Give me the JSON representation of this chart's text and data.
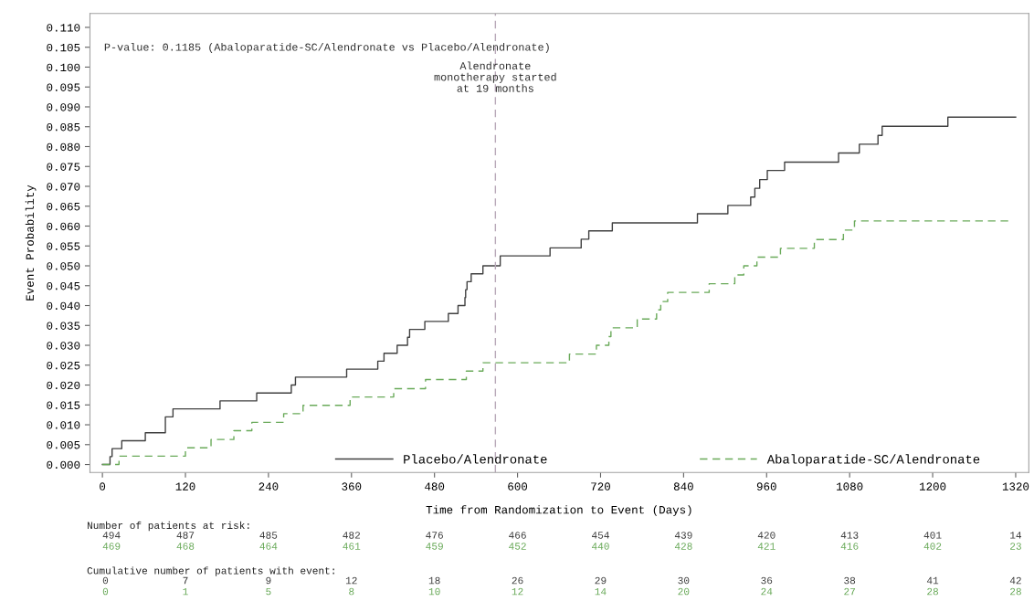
{
  "chart_data": {
    "type": "step",
    "xlabel": "Time from Randomization to Event (Days)",
    "ylabel": "Event Probability",
    "series": [
      {
        "name": "Placebo/Alendronate",
        "color": "#404040",
        "line_style": "solid",
        "x": [
          0,
          11,
          14,
          28,
          62,
          91,
          102,
          170,
          223,
          273,
          279,
          353,
          398,
          407,
          426,
          441,
          444,
          466,
          500,
          514,
          524,
          525,
          527,
          533,
          550,
          575,
          647,
          692,
          703,
          737,
          860,
          904,
          937,
          943,
          950,
          961,
          986,
          1064,
          1094,
          1121,
          1127,
          1222,
          1320
        ],
        "values": [
          0,
          0.002,
          0.004,
          0.006,
          0.008,
          0.012,
          0.014,
          0.016,
          0.018,
          0.02,
          0.022,
          0.024,
          0.026,
          0.028,
          0.03,
          0.032,
          0.034,
          0.036,
          0.038,
          0.04,
          0.042,
          0.044,
          0.046,
          0.048,
          0.05,
          0.0525,
          0.0545,
          0.0567,
          0.0588,
          0.0608,
          0.0631,
          0.0652,
          0.0673,
          0.0695,
          0.0717,
          0.074,
          0.0761,
          0.0784,
          0.0806,
          0.0828,
          0.0851,
          0.0874,
          0.0874
        ]
      },
      {
        "name": "Abaloparatide-SC/Alendronate",
        "color": "#6aaa5a",
        "line_style": "dashed",
        "x": [
          0,
          24,
          120,
          157,
          190,
          216,
          262,
          290,
          358,
          421,
          467,
          526,
          550,
          675,
          714,
          732,
          735,
          773,
          801,
          807,
          817,
          877,
          914,
          927,
          946,
          980,
          1029,
          1071,
          1087,
          1313
        ],
        "values": [
          0,
          0.0021,
          0.0042,
          0.0063,
          0.0085,
          0.0106,
          0.0128,
          0.0149,
          0.017,
          0.0191,
          0.0214,
          0.0235,
          0.0256,
          0.0278,
          0.03,
          0.0322,
          0.0344,
          0.0366,
          0.0389,
          0.041,
          0.0433,
          0.0455,
          0.0477,
          0.05,
          0.0522,
          0.0544,
          0.0566,
          0.059,
          0.0613,
          0.0613
        ]
      }
    ],
    "xlim": [
      -18,
      1339
    ],
    "xticks": [
      0,
      120,
      240,
      360,
      480,
      600,
      720,
      840,
      960,
      1080,
      1200,
      1320
    ],
    "ylim": [
      -0.002,
      0.1135
    ],
    "yticks": [
      {
        "value": 0,
        "label": "0.000"
      },
      {
        "value": 0.005,
        "label": "0.005"
      },
      {
        "value": 0.01,
        "label": "0.010"
      },
      {
        "value": 0.015,
        "label": "0.015"
      },
      {
        "value": 0.02,
        "label": "0.020"
      },
      {
        "value": 0.025,
        "label": "0.025"
      },
      {
        "value": 0.03,
        "label": "0.030"
      },
      {
        "value": 0.035,
        "label": "0.035"
      },
      {
        "value": 0.04,
        "label": "0.040"
      },
      {
        "value": 0.045,
        "label": "0.045"
      },
      {
        "value": 0.05,
        "label": "0.050"
      },
      {
        "value": 0.055,
        "label": "0.055"
      },
      {
        "value": 0.06,
        "label": "0.060"
      },
      {
        "value": 0.065,
        "label": "0.065"
      },
      {
        "value": 0.07,
        "label": "0.070"
      },
      {
        "value": 0.075,
        "label": "0.075"
      },
      {
        "value": 0.08,
        "label": "0.080"
      },
      {
        "value": 0.085,
        "label": "0.085"
      },
      {
        "value": 0.09,
        "label": "0.090"
      },
      {
        "value": 0.095,
        "label": "0.095"
      },
      {
        "value": 0.1,
        "label": "0.100"
      },
      {
        "value": 0.105,
        "label": "0.105"
      },
      {
        "value": 0.11,
        "label": "0.110"
      }
    ],
    "ref_lines": [
      {
        "axis": "x",
        "value": 568,
        "label": "Alendronate\nmonotherapy started\nat 19 months",
        "color": "#b8a8b8",
        "line_style": "dashed"
      }
    ],
    "grid": false,
    "legend": "bottom",
    "annotations": [
      "P-value: 0.1185 (Abaloparatide-SC/Alendronate vs Placebo/Alendronate)",
      "Number of patients at risk:",
      "494 487 485 482 476 466 454 439 420 413 401 14",
      "469 468 464 461 459 452 440 428 421 416 402 23",
      "Cumulative number of patients with event:",
      "0 7 9 12 18 26 29 30 36 38 41 42",
      "0 1 5 8 10 12 14 20 24 27 28 28"
    ]
  }
}
